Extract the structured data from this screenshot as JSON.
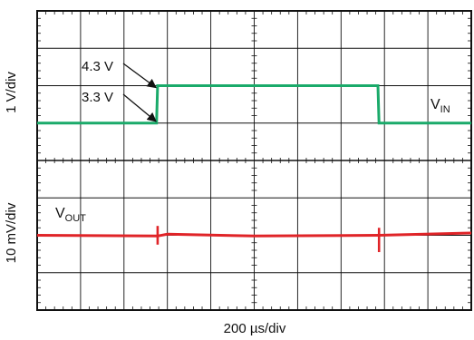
{
  "chart_data": {
    "type": "line",
    "title": "",
    "xlabel": "200 µs/div",
    "grid": true,
    "x_divisions": 10,
    "y_divisions": 8,
    "panels": [
      {
        "ylabel": "1 V/div",
        "series": [
          {
            "name_main": "V",
            "name_sub": "IN",
            "color": "#1aaa6a",
            "x_unit": "µs",
            "y_unit": "V",
            "points": [
              [
                0,
                3.3
              ],
              [
                550,
                3.3
              ],
              [
                555,
                4.3
              ],
              [
                1570,
                4.3
              ],
              [
                1575,
                3.3
              ],
              [
                2000,
                3.3
              ]
            ]
          }
        ],
        "annotations": [
          {
            "text": "4.3 V",
            "x": 555,
            "y": 4.3
          },
          {
            "text": "3.3 V",
            "x": 555,
            "y": 3.3
          }
        ]
      },
      {
        "ylabel": "10 mV/div",
        "series": [
          {
            "name_main": "V",
            "name_sub": "OUT",
            "color": "#e02428",
            "x_unit": "µs",
            "y_unit": "mV (relative)",
            "points": [
              [
                0,
                0
              ],
              [
                555,
                -0.2
              ],
              [
                600,
                0.3
              ],
              [
                1000,
                -0.2
              ],
              [
                1575,
                0
              ],
              [
                2000,
                0.6
              ]
            ],
            "spikes": [
              {
                "x": 555,
                "y_top": 2.5,
                "y_bottom": -2.5
              },
              {
                "x": 1575,
                "y_top": 2.0,
                "y_bottom": -4.5
              }
            ]
          }
        ]
      }
    ]
  }
}
